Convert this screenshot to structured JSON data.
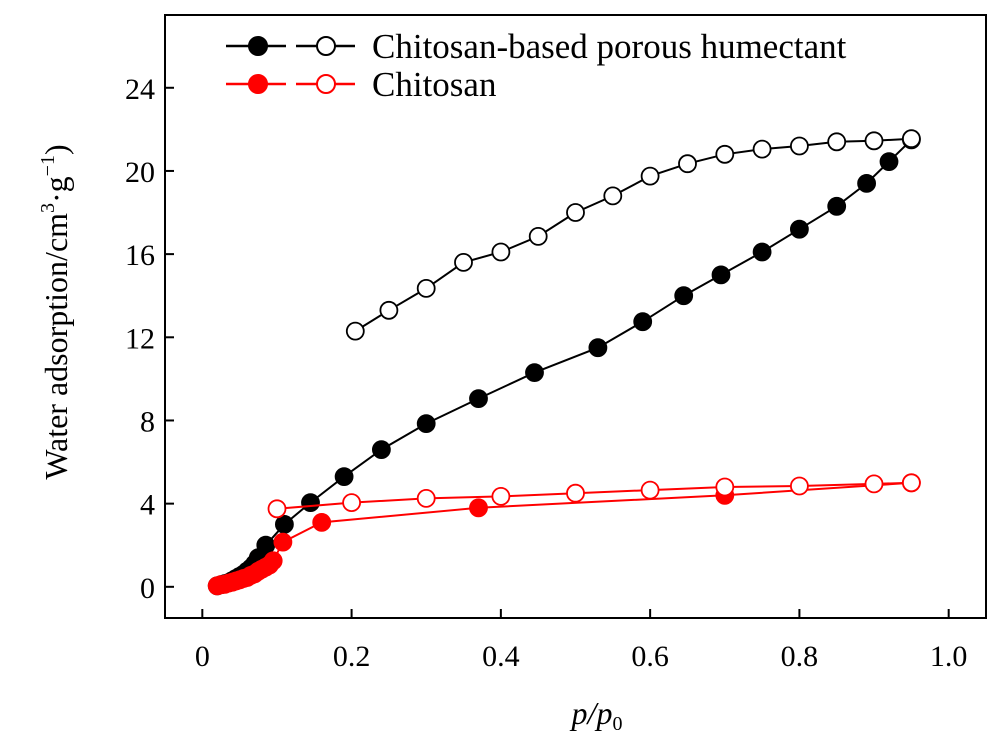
{
  "chart_data": {
    "type": "line",
    "title": "",
    "xlabel": "p/p0",
    "xlabel_parts": {
      "main": "p/p",
      "sub": "0"
    },
    "ylabel": "Water adsorption/cm³·g⁻¹",
    "ylabel_parts": {
      "main": "Water adsorption/cm",
      "sup1": "3",
      "dot": "·g",
      "sup2": "−1",
      "close": ")"
    },
    "xlim": [
      -0.05,
      1.05
    ],
    "ylim": [
      -1.5,
      27.5
    ],
    "xticks": [
      0,
      0.2,
      0.4,
      0.6,
      0.8,
      1.0
    ],
    "xtick_labels": [
      "0",
      "0.2",
      "0.4",
      "0.6",
      "0.8",
      "1.0"
    ],
    "yticks": [
      0,
      4,
      8,
      12,
      16,
      20,
      24
    ],
    "ytick_labels": [
      "0",
      "4",
      "8",
      "12",
      "16",
      "20",
      "24"
    ],
    "legend_position": "top",
    "legend": [
      {
        "label": "Chitosan-based porous humectant",
        "color": "#000000"
      },
      {
        "label": "Chitosan",
        "color": "#ff0000"
      }
    ],
    "series": [
      {
        "name": "Chitosan-based porous humectant (adsorption)",
        "color": "#000000",
        "marker": "filled",
        "x": [
          0.02,
          0.025,
          0.03,
          0.035,
          0.04,
          0.045,
          0.05,
          0.055,
          0.06,
          0.065,
          0.07,
          0.075,
          0.085,
          0.11,
          0.145,
          0.19,
          0.24,
          0.3,
          0.37,
          0.445,
          0.53,
          0.59,
          0.645,
          0.695,
          0.75,
          0.8,
          0.85,
          0.89,
          0.92,
          0.95
        ],
        "y": [
          0.05,
          0.1,
          0.15,
          0.2,
          0.3,
          0.4,
          0.5,
          0.6,
          0.75,
          0.9,
          1.1,
          1.4,
          2.0,
          3.0,
          4.05,
          5.3,
          6.6,
          7.85,
          9.05,
          10.3,
          11.5,
          12.75,
          14.0,
          15.0,
          16.1,
          17.2,
          18.3,
          19.4,
          20.45,
          21.5
        ]
      },
      {
        "name": "Chitosan-based porous humectant (desorption)",
        "color": "#000000",
        "marker": "open",
        "x": [
          0.95,
          0.9,
          0.85,
          0.8,
          0.75,
          0.7,
          0.65,
          0.6,
          0.55,
          0.5,
          0.45,
          0.4,
          0.35,
          0.3,
          0.25,
          0.205
        ],
        "y": [
          21.55,
          21.45,
          21.4,
          21.2,
          21.05,
          20.8,
          20.35,
          19.75,
          18.8,
          18.0,
          16.85,
          16.1,
          15.6,
          14.35,
          13.3,
          12.3
        ]
      },
      {
        "name": "Chitosan (adsorption)",
        "color": "#ff0000",
        "marker": "filled",
        "x": [
          0.02,
          0.025,
          0.03,
          0.035,
          0.04,
          0.045,
          0.05,
          0.055,
          0.06,
          0.065,
          0.07,
          0.075,
          0.08,
          0.085,
          0.09,
          0.095,
          0.108,
          0.16,
          0.37,
          0.7,
          0.95
        ],
        "y": [
          0.05,
          0.1,
          0.12,
          0.18,
          0.22,
          0.28,
          0.33,
          0.4,
          0.45,
          0.55,
          0.62,
          0.75,
          0.85,
          0.95,
          1.05,
          1.25,
          2.15,
          3.1,
          3.8,
          4.4,
          5.0
        ]
      },
      {
        "name": "Chitosan (desorption)",
        "color": "#ff0000",
        "marker": "open",
        "x": [
          0.95,
          0.9,
          0.8,
          0.7,
          0.6,
          0.5,
          0.4,
          0.3,
          0.2,
          0.1
        ],
        "y": [
          5.0,
          4.95,
          4.85,
          4.8,
          4.65,
          4.5,
          4.35,
          4.25,
          4.05,
          3.75
        ]
      }
    ]
  }
}
